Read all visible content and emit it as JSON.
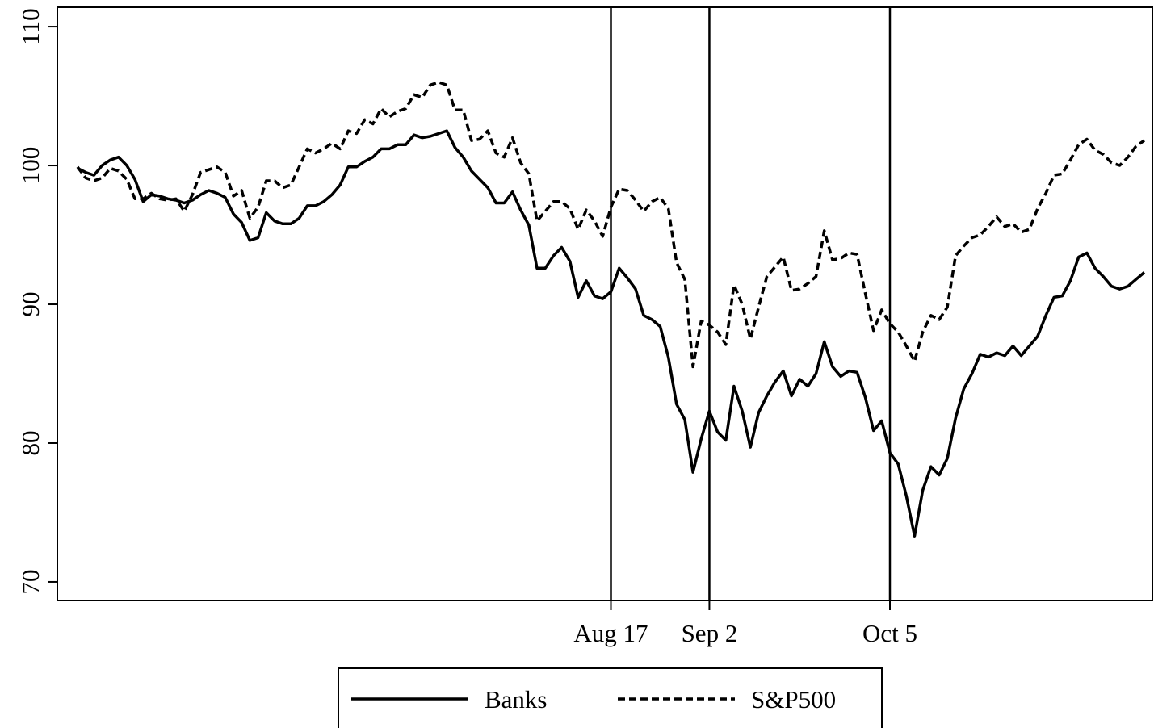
{
  "chart_data": {
    "type": "line",
    "categories": [
      null,
      null,
      null,
      null,
      null,
      null,
      null,
      null,
      null,
      null,
      null,
      null,
      null,
      null,
      null,
      null,
      null,
      null,
      null,
      null,
      null,
      null,
      null,
      null,
      null,
      null,
      null,
      null,
      null,
      null,
      null,
      null,
      null,
      null,
      null,
      null,
      null,
      null,
      null,
      null,
      null,
      null,
      null,
      null,
      null,
      null,
      null,
      null,
      null,
      null,
      null,
      null,
      null,
      null,
      null,
      null,
      null,
      null,
      null,
      null,
      null,
      null,
      null,
      null,
      null,
      "Aug 17",
      null,
      null,
      null,
      null,
      null,
      null,
      null,
      null,
      null,
      null,
      null,
      "Sep 2",
      null,
      null,
      null,
      null,
      null,
      null,
      null,
      null,
      null,
      null,
      null,
      null,
      null,
      null,
      null,
      null,
      null,
      null,
      null,
      null,
      null,
      "Oct 5",
      null,
      null,
      null,
      null,
      null,
      null,
      null,
      null,
      null,
      null,
      null,
      null,
      null,
      null,
      null,
      null,
      null,
      null,
      null,
      null,
      null,
      null,
      null,
      null,
      null,
      null,
      null,
      null,
      null,
      null,
      null
    ],
    "series": [
      {
        "name": "Banks",
        "color": "#000000",
        "dash": "none",
        "values": [
          99.8,
          99.5,
          99.3,
          100.0,
          100.4,
          100.6,
          100.0,
          99.0,
          97.4,
          97.9,
          97.8,
          97.6,
          97.5,
          97.3,
          97.5,
          97.9,
          98.2,
          98.0,
          97.7,
          96.5,
          95.9,
          94.6,
          94.8,
          96.6,
          96.0,
          95.8,
          95.8,
          96.2,
          97.1,
          97.1,
          97.4,
          97.9,
          98.6,
          99.9,
          99.9,
          100.3,
          100.6,
          101.2,
          101.2,
          101.5,
          101.5,
          102.2,
          102.0,
          102.1,
          102.3,
          102.5,
          101.3,
          100.6,
          99.6,
          99.0,
          98.4,
          97.3,
          97.3,
          98.1,
          96.8,
          95.7,
          92.6,
          92.6,
          93.5,
          94.1,
          93.1,
          90.5,
          91.7,
          90.6,
          90.4,
          90.9,
          92.6,
          91.9,
          91.1,
          89.2,
          88.9,
          88.4,
          86.2,
          82.8,
          81.7,
          77.9,
          80.3,
          82.3,
          80.8,
          80.2,
          84.1,
          82.3,
          79.7,
          82.2,
          83.4,
          84.4,
          85.2,
          83.4,
          84.6,
          84.1,
          85.0,
          87.3,
          85.5,
          84.8,
          85.2,
          85.1,
          83.3,
          80.9,
          81.6,
          79.3,
          78.5,
          76.2,
          73.3,
          76.6,
          78.3,
          77.7,
          78.9,
          81.8,
          83.9,
          85.0,
          86.4,
          86.2,
          86.5,
          86.3,
          87.0,
          86.3,
          87.0,
          87.7,
          89.2,
          90.5,
          90.6,
          91.7,
          93.4,
          93.7,
          92.6,
          92.0,
          91.3,
          91.1,
          91.3,
          91.8,
          92.3
        ]
      },
      {
        "name": "S&P500",
        "color": "#000000",
        "dash": "dashed",
        "values": [
          99.9,
          99.1,
          98.9,
          99.1,
          99.8,
          99.6,
          99.0,
          97.6,
          97.6,
          98.0,
          97.6,
          97.5,
          97.6,
          96.7,
          97.9,
          99.5,
          99.7,
          99.9,
          99.5,
          97.8,
          98.2,
          96.2,
          97.0,
          98.9,
          98.9,
          98.4,
          98.6,
          99.9,
          101.2,
          100.9,
          101.2,
          101.6,
          101.2,
          102.5,
          102.3,
          103.3,
          103.0,
          104.1,
          103.5,
          103.9,
          104.1,
          105.1,
          104.9,
          105.8,
          106.0,
          105.8,
          104.0,
          104.0,
          101.8,
          101.9,
          102.5,
          100.9,
          100.6,
          102.0,
          100.2,
          99.4,
          96.0,
          96.7,
          97.4,
          97.4,
          96.9,
          95.4,
          96.8,
          96.0,
          94.9,
          97.0,
          98.3,
          98.2,
          97.5,
          96.7,
          97.4,
          97.7,
          96.9,
          93.0,
          91.8,
          85.5,
          88.8,
          88.5,
          88.0,
          87.1,
          91.4,
          90.0,
          87.5,
          89.8,
          92.0,
          92.7,
          93.4,
          91.0,
          91.1,
          91.5,
          92.0,
          95.3,
          93.2,
          93.3,
          93.7,
          93.6,
          90.8,
          88.1,
          89.6,
          88.6,
          88.0,
          87.0,
          85.9,
          88.0,
          89.2,
          88.9,
          89.8,
          93.5,
          94.2,
          94.8,
          95.0,
          95.6,
          96.3,
          95.6,
          95.8,
          95.2,
          95.4,
          96.9,
          98.0,
          99.3,
          99.4,
          100.4,
          101.5,
          101.9,
          101.1,
          100.8,
          100.2,
          100.0,
          100.6,
          101.4,
          101.8
        ]
      }
    ],
    "ylim": [
      68.66,
      111.4
    ],
    "yticks": [
      70,
      80,
      90,
      100,
      110
    ],
    "grid": false
  }
}
